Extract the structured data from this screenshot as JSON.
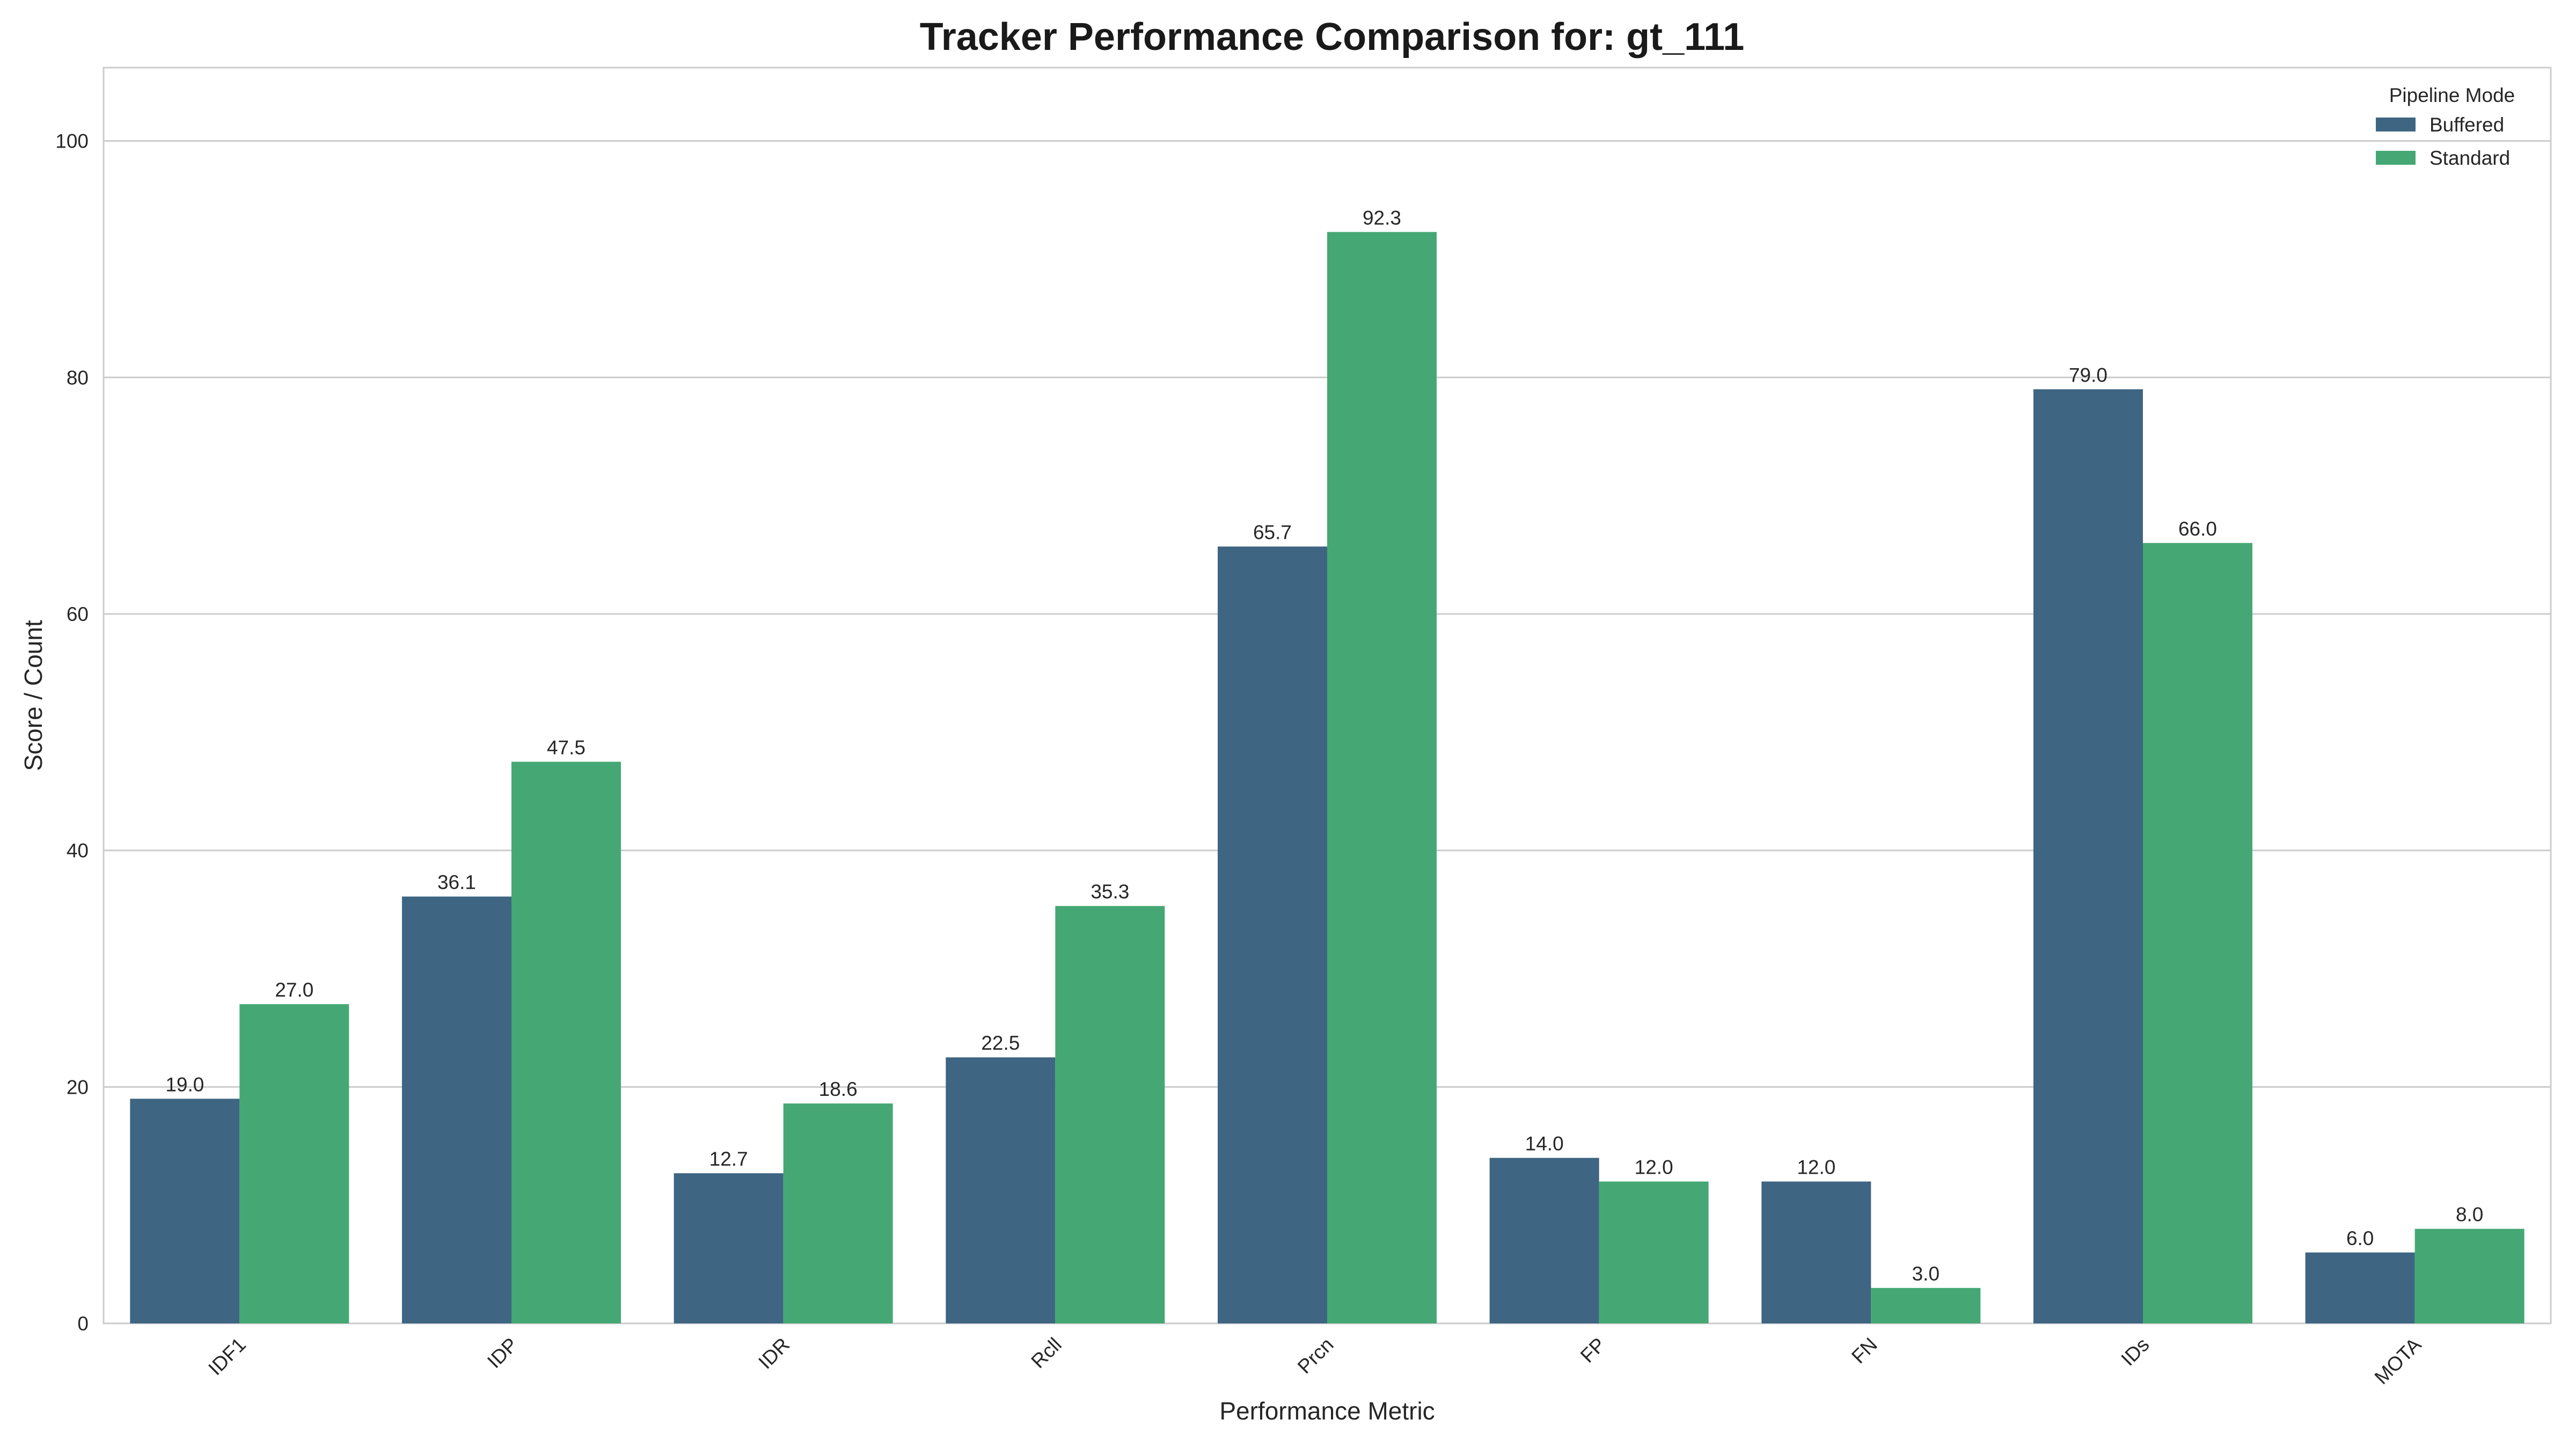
{
  "chart_data": {
    "type": "bar",
    "title": "Tracker Performance Comparison for: gt_111",
    "xlabel": "Performance Metric",
    "ylabel": "Score / Count",
    "categories": [
      "IDF1",
      "IDP",
      "IDR",
      "Rcll",
      "Prcn",
      "FP",
      "FN",
      "IDs",
      "MOTA"
    ],
    "series": [
      {
        "name": "Buffered",
        "color": "#3e6582",
        "values": [
          19.0,
          36.1,
          12.7,
          22.5,
          65.7,
          14.0,
          12.0,
          79.0,
          6.0
        ]
      },
      {
        "name": "Standard",
        "color": "#45a874",
        "values": [
          27.0,
          47.5,
          18.6,
          35.3,
          92.3,
          12.0,
          3.0,
          66.0,
          8.0
        ]
      }
    ],
    "ylim": [
      0,
      106.2
    ],
    "yticks": [
      0,
      20,
      40,
      60,
      80,
      100
    ],
    "legend_title": "Pipeline Mode",
    "legend_position": "top-right",
    "grid": true
  }
}
